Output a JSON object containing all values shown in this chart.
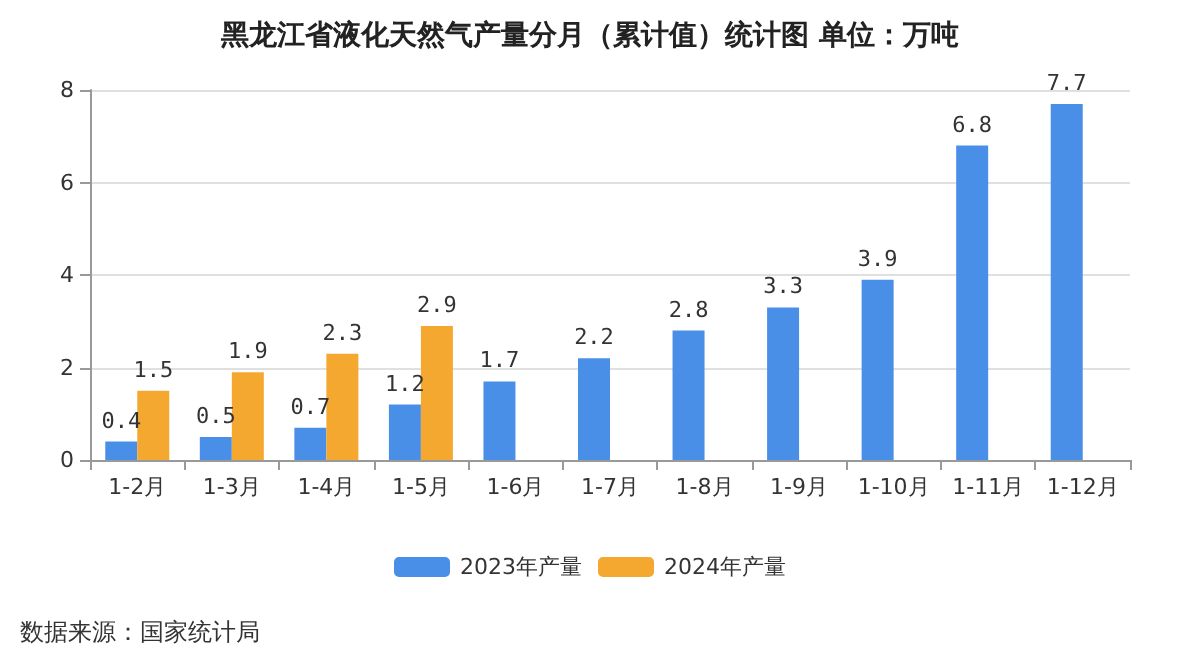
{
  "chart_data": {
    "type": "bar",
    "title": "黑龙江省液化天然气产量分月（累计值）统计图 单位：万吨",
    "categories": [
      "1-2月",
      "1-3月",
      "1-4月",
      "1-5月",
      "1-6月",
      "1-7月",
      "1-8月",
      "1-9月",
      "1-10月",
      "1-11月",
      "1-12月"
    ],
    "series": [
      {
        "name": "2023年产量",
        "color": "#4a8fe7",
        "values": [
          0.4,
          0.5,
          0.7,
          1.2,
          1.7,
          2.2,
          2.8,
          3.3,
          3.9,
          6.8,
          7.7
        ]
      },
      {
        "name": "2024年产量",
        "color": "#f5a830",
        "values": [
          1.5,
          1.9,
          2.3,
          2.9,
          null,
          null,
          null,
          null,
          null,
          null,
          null
        ]
      }
    ],
    "ylim": [
      0,
      8
    ],
    "yticks": [
      0,
      2,
      4,
      6,
      8
    ],
    "grid": "y",
    "legend": "bottom",
    "data_labels": true,
    "annotations": [
      "数据来源：国家统计局"
    ]
  }
}
